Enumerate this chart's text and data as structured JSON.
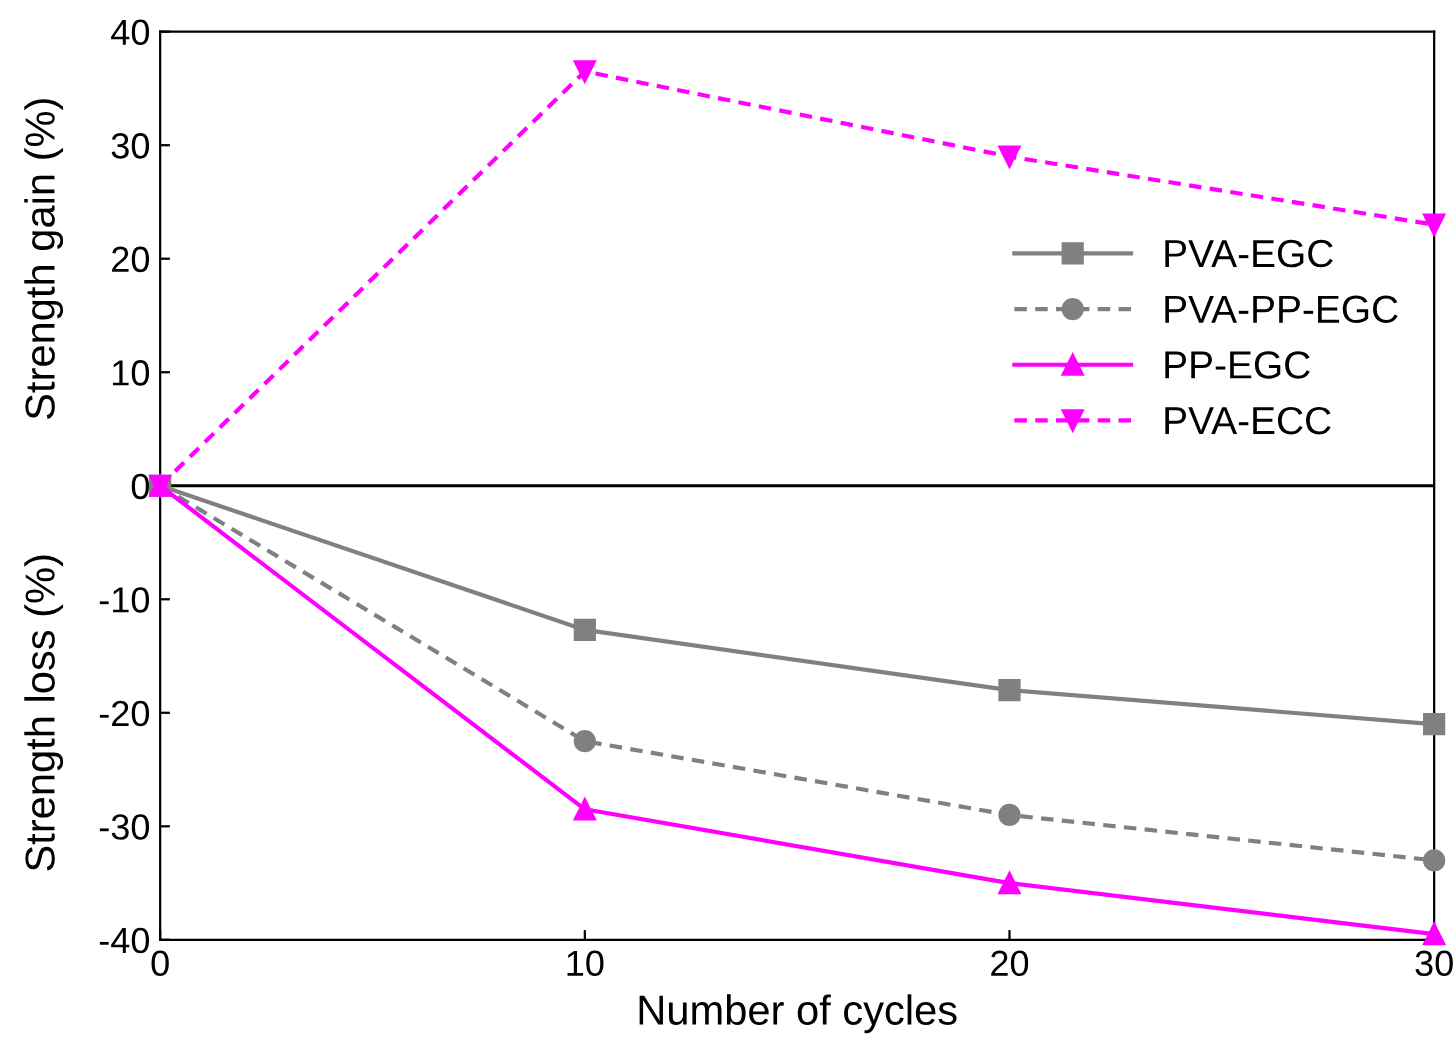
{
  "chart_data": {
    "type": "line",
    "xlabel": "Number of cycles",
    "annotations": [
      "Strength gain (%)",
      "Strength loss (%)"
    ],
    "x": [
      0,
      10,
      20,
      30
    ],
    "xlim": [
      0,
      30
    ],
    "xticks": [
      0,
      10,
      20,
      30
    ],
    "ylim": [
      -40,
      40
    ],
    "yticks": [
      -40,
      -30,
      -20,
      -10,
      0,
      10,
      20,
      30,
      40
    ],
    "series": [
      {
        "name": "PVA-EGC",
        "color": "#808080",
        "marker": "square",
        "line_style": "solid",
        "values": [
          0,
          -12.7,
          -18,
          -21
        ]
      },
      {
        "name": "PVA-PP-EGC",
        "color": "#808080",
        "marker": "circle",
        "line_style": "dashed",
        "values": [
          0,
          -22.5,
          -29,
          -33
        ]
      },
      {
        "name": "PP-EGC",
        "color": "#ff00ff",
        "marker": "triangle",
        "line_style": "solid",
        "values": [
          0,
          -28.5,
          -35,
          -39.5
        ]
      },
      {
        "name": "PVA-ECC",
        "color": "#ff00ff",
        "marker": "triangle_down",
        "line_style": "dashed",
        "values": [
          0,
          36.5,
          29,
          23
        ]
      }
    ],
    "ref_lines": [
      {
        "axis": "y",
        "value": 0,
        "color": "#000000"
      }
    ],
    "legend": "right",
    "grid": false
  }
}
